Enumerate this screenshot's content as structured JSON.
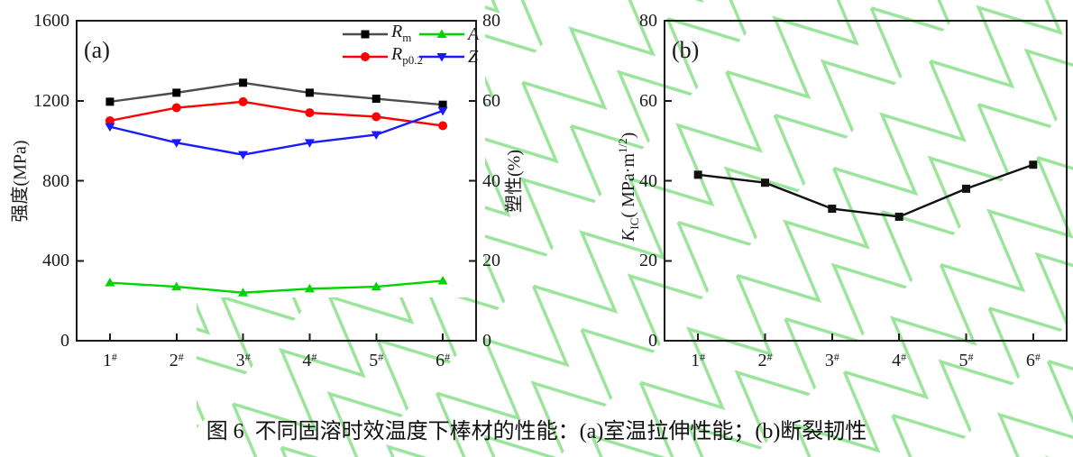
{
  "figure": {
    "caption": "图 6  不同固溶时效温度下棒材的性能：(a)室温拉伸性能；(b)断裂韧性",
    "background_color": "#ffffff",
    "watermark_color": "#9be49b",
    "axis_color": "#1a1a1a"
  },
  "chart_data": [
    {
      "type": "line",
      "panel_label": "(a)",
      "categories": [
        "1",
        "2",
        "3",
        "4",
        "5",
        "6"
      ],
      "category_suffix": "#",
      "axes": {
        "left": {
          "label_parts": [
            {
              "t": "强度(MPa)",
              "s": ""
            }
          ],
          "range": [
            0,
            1600
          ],
          "ticks": [
            0,
            400,
            800,
            1200,
            1600
          ]
        },
        "right": {
          "label_parts": [
            {
              "t": "塑性(%)",
              "s": ""
            }
          ],
          "range": [
            0,
            80
          ],
          "ticks": [
            0,
            20,
            40,
            60,
            80
          ]
        }
      },
      "grid": false,
      "legend_position": "top-right-inside",
      "series": [
        {
          "name": "Rm",
          "legend_parts": [
            {
              "t": "R",
              "s": "i"
            },
            {
              "t": "m",
              "s": "sub"
            }
          ],
          "axis": "left",
          "line_color": "#4d4d4d",
          "marker_color": "#000000",
          "marker": "square",
          "values": [
            1195,
            1240,
            1290,
            1240,
            1210,
            1180
          ]
        },
        {
          "name": "Rp0.2",
          "legend_parts": [
            {
              "t": "R",
              "s": "i"
            },
            {
              "t": "p0.2",
              "s": "sub"
            }
          ],
          "axis": "left",
          "line_color": "#fe0000",
          "marker_color": "#fe0000",
          "marker": "circle",
          "values": [
            1100,
            1165,
            1195,
            1140,
            1120,
            1075
          ]
        },
        {
          "name": "A",
          "legend_parts": [
            {
              "t": "A",
              "s": "i"
            }
          ],
          "axis": "right",
          "line_color": "#00d400",
          "marker_color": "#00d400",
          "marker": "triangle-up",
          "values": [
            14.5,
            13.5,
            12,
            13,
            13.5,
            15
          ]
        },
        {
          "name": "Z",
          "legend_parts": [
            {
              "t": "Z",
              "s": "i"
            }
          ],
          "axis": "right",
          "line_color": "#1a1aff",
          "marker_color": "#1a1aff",
          "marker": "triangle-down",
          "values": [
            53.5,
            49.5,
            46.5,
            49.5,
            51.5,
            57.5
          ]
        }
      ]
    },
    {
      "type": "line",
      "panel_label": "(b)",
      "categories": [
        "1",
        "2",
        "3",
        "4",
        "5",
        "6"
      ],
      "category_suffix": "#",
      "axes": {
        "left": {
          "label_parts": [
            {
              "t": "K",
              "s": "i"
            },
            {
              "t": "IC",
              "s": "sub"
            },
            {
              "t": "( MPa·m",
              "s": ""
            },
            {
              "t": "1/2",
              "s": "sup"
            },
            {
              "t": ")",
              "s": ""
            }
          ],
          "range": [
            0,
            80
          ],
          "ticks": [
            0,
            20,
            40,
            60,
            80
          ]
        }
      },
      "grid": false,
      "series": [
        {
          "name": "KIC",
          "legend_parts": [
            {
              "t": "K",
              "s": "i"
            },
            {
              "t": "IC",
              "s": "sub"
            }
          ],
          "axis": "left",
          "line_color": "#111111",
          "marker_color": "#111111",
          "marker": "square",
          "values": [
            41.5,
            39.5,
            33,
            31,
            38,
            44
          ]
        }
      ]
    }
  ]
}
